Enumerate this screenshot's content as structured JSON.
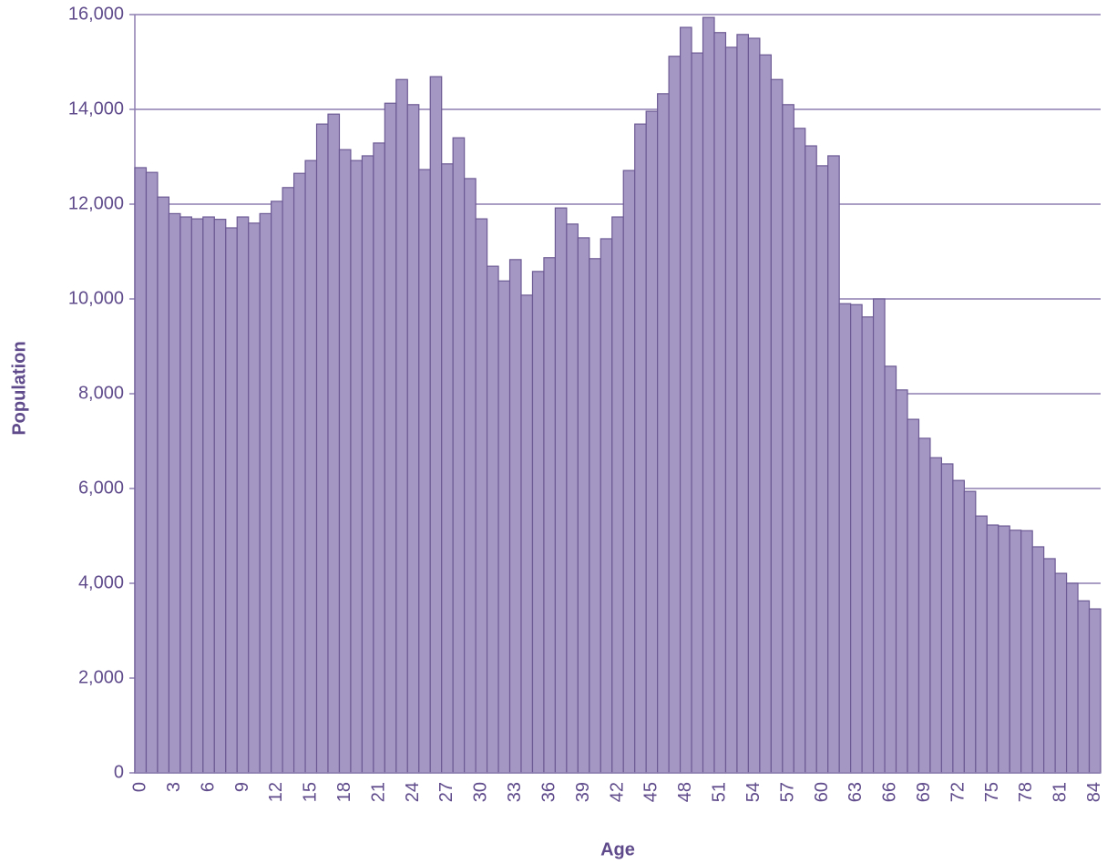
{
  "chart_data": {
    "type": "bar",
    "xlabel": "Age",
    "ylabel": "Population",
    "categories": [
      "0",
      null,
      null,
      "3",
      null,
      null,
      "6",
      null,
      null,
      "9",
      null,
      null,
      "12",
      null,
      null,
      "15",
      null,
      null,
      "18",
      null,
      null,
      "21",
      null,
      null,
      "24",
      null,
      null,
      "27",
      null,
      null,
      "30",
      null,
      null,
      "33",
      null,
      null,
      "36",
      null,
      null,
      "39",
      null,
      null,
      "42",
      null,
      null,
      "45",
      null,
      null,
      "48",
      null,
      null,
      "51",
      null,
      null,
      "54",
      null,
      null,
      "57",
      null,
      null,
      "60",
      null,
      null,
      "63",
      null,
      null,
      "66",
      null,
      null,
      "69",
      null,
      null,
      "72",
      null,
      null,
      "75",
      null,
      null,
      "78",
      null,
      null,
      "81",
      null,
      null,
      "84"
    ],
    "values": [
      12770,
      12670,
      12150,
      11800,
      11730,
      11690,
      11730,
      11680,
      11500,
      11730,
      11600,
      11800,
      12060,
      12350,
      12650,
      12920,
      13690,
      13900,
      13150,
      12920,
      13020,
      13290,
      14130,
      14630,
      14100,
      12730,
      14690,
      12850,
      13400,
      12540,
      11690,
      10690,
      10380,
      10830,
      10080,
      10580,
      10870,
      11920,
      11580,
      11290,
      10850,
      11270,
      11730,
      12710,
      13690,
      13960,
      14330,
      15120,
      15730,
      15190,
      15940,
      15620,
      15310,
      15580,
      15500,
      15150,
      14630,
      14100,
      13600,
      13230,
      12810,
      13020,
      9900,
      9880,
      9620,
      10000,
      8580,
      8080,
      7460,
      7060,
      6650,
      6520,
      6170,
      5940,
      5420,
      5230,
      5210,
      5120,
      5110,
      4770,
      4520,
      4210,
      4000,
      3630,
      3460
    ],
    "color": "#a597c4",
    "edge_color": "#6c5a94",
    "ylim": [
      0,
      16000
    ],
    "yticks": [
      0,
      {
        "value": 2000,
        "label": "2,000"
      },
      {
        "value": 4000,
        "label": "4,000"
      },
      {
        "value": 6000,
        "label": "6,000"
      },
      {
        "value": 8000,
        "label": "8,000"
      },
      {
        "value": 10000,
        "label": "10,000"
      },
      {
        "value": 12000,
        "label": "12,000"
      },
      {
        "value": 14000,
        "label": "14,000"
      },
      {
        "value": 16000,
        "label": "16,000"
      }
    ],
    "grid": true
  }
}
